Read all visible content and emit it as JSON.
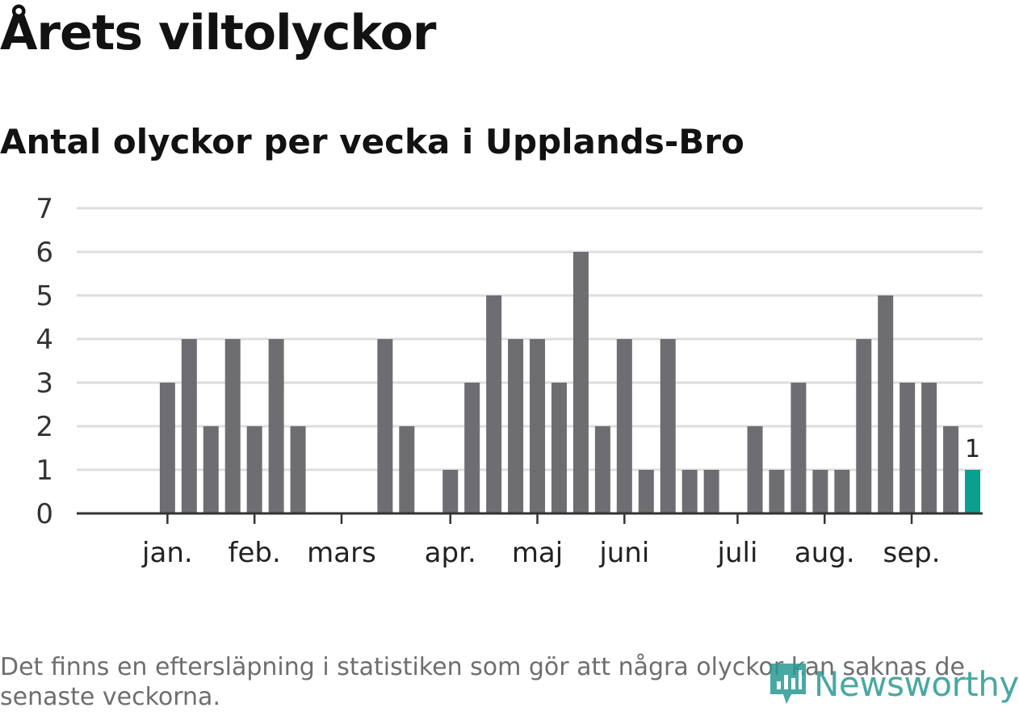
{
  "header": {
    "title": "Årets viltolyckor",
    "subtitle": "Antal olyckor per vecka i Upplands-Bro"
  },
  "footer": {
    "note": "Det finns en eftersläpning i statistiken som gör att några olyckor kan saknas de senaste veckorna.",
    "logo_text": "Newsworthy"
  },
  "colors": {
    "bar": "#6e6d72",
    "highlight": "#0aa090",
    "grid": "#dedede",
    "axis": "#333333",
    "logo": "#2a9a94"
  },
  "chart_data": {
    "type": "bar",
    "title": "Antal olyckor per vecka i Upplands-Bro",
    "xlabel": "",
    "ylabel": "",
    "ylim": [
      0,
      7
    ],
    "yticks": [
      "0",
      "1",
      "2",
      "3",
      "4",
      "5",
      "6",
      "7"
    ],
    "grid": true,
    "week_count": 40,
    "values": [
      0,
      0,
      3,
      4,
      2,
      4,
      2,
      4,
      2,
      0,
      0,
      0,
      4,
      2,
      0,
      1,
      3,
      5,
      4,
      4,
      3,
      6,
      2,
      4,
      1,
      4,
      1,
      1,
      0,
      2,
      1,
      3,
      1,
      1,
      4,
      5,
      3,
      3,
      2,
      1
    ],
    "highlight_index": 39,
    "highlight_label": "1",
    "month_labels": [
      {
        "label": "jan.",
        "week": 2.0
      },
      {
        "label": "feb.",
        "week": 6.0
      },
      {
        "label": "mars",
        "week": 10.0
      },
      {
        "label": "apr.",
        "week": 15.0
      },
      {
        "label": "maj",
        "week": 19.0
      },
      {
        "label": "juni",
        "week": 23.0
      },
      {
        "label": "juli",
        "week": 28.2
      },
      {
        "label": "aug.",
        "week": 32.2
      },
      {
        "label": "sep.",
        "week": 36.2
      }
    ]
  }
}
